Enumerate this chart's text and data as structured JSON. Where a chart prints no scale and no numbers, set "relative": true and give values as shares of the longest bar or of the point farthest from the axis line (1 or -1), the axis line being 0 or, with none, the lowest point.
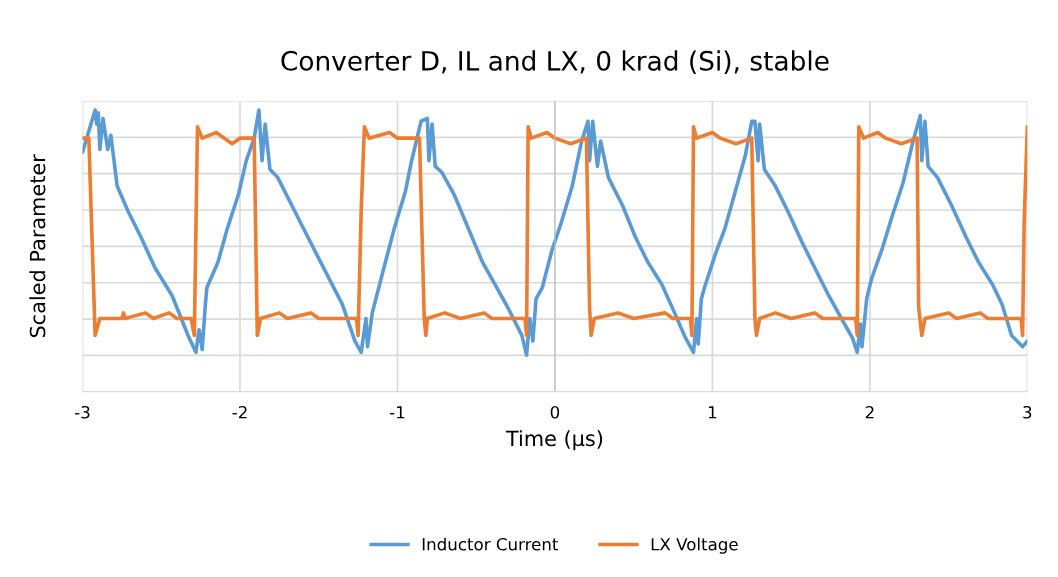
{
  "chart_data": {
    "type": "line",
    "title": "Converter D, IL and LX, 0 krad (Si), stable",
    "xlabel": "Time (µs)",
    "ylabel": "Scaled Parameter",
    "xlim": [
      -3,
      3
    ],
    "xticks": [
      -3,
      -2,
      -1,
      0,
      1,
      2,
      3
    ],
    "relative": true,
    "grid": true,
    "legend": "bottom",
    "series": [
      {
        "name": "Inductor Current",
        "color": "#5b9bd5",
        "x": [
          -3.0,
          -2.92,
          -2.91,
          -2.9,
          -2.89,
          -2.87,
          -2.84,
          -2.82,
          -2.78,
          -2.71,
          -2.63,
          -2.54,
          -2.43,
          -2.33,
          -2.28,
          -2.26,
          -2.24,
          -2.22,
          -2.21,
          -2.14,
          -2.08,
          -2.01,
          -1.96,
          -1.91,
          -1.88,
          -1.86,
          -1.84,
          -1.81,
          -1.76,
          -1.67,
          -1.57,
          -1.46,
          -1.35,
          -1.27,
          -1.23,
          -1.2,
          -1.19,
          -1.16,
          -1.1,
          -1.02,
          -0.95,
          -0.91,
          -0.85,
          -0.81,
          -0.8,
          -0.78,
          -0.76,
          -0.72,
          -0.64,
          -0.55,
          -0.46,
          -0.38,
          -0.3,
          -0.21,
          -0.18,
          -0.16,
          -0.14,
          -0.12,
          -0.08,
          -0.02,
          0.04,
          0.11,
          0.17,
          0.21,
          0.22,
          0.24,
          0.27,
          0.29,
          0.34,
          0.43,
          0.51,
          0.59,
          0.68,
          0.76,
          0.83,
          0.88,
          0.9,
          0.91,
          0.93,
          0.95,
          1.02,
          1.08,
          1.14,
          1.21,
          1.25,
          1.27,
          1.29,
          1.3,
          1.33,
          1.4,
          1.48,
          1.57,
          1.65,
          1.74,
          1.82,
          1.89,
          1.92,
          1.94,
          1.95,
          1.98,
          2.01,
          2.08,
          2.14,
          2.21,
          2.27,
          2.32,
          2.33,
          2.35,
          2.37,
          2.43,
          2.52,
          2.61,
          2.69,
          2.78,
          2.84,
          2.9,
          2.97,
          3.0
        ],
        "values": [
          0.85,
          1.0,
          0.95,
          0.99,
          0.86,
          0.97,
          0.86,
          0.91,
          0.73,
          0.64,
          0.55,
          0.44,
          0.34,
          0.2,
          0.14,
          0.22,
          0.15,
          0.31,
          0.37,
          0.46,
          0.58,
          0.7,
          0.82,
          0.9,
          1.0,
          0.82,
          0.95,
          0.79,
          0.76,
          0.66,
          0.55,
          0.43,
          0.31,
          0.18,
          0.14,
          0.26,
          0.16,
          0.28,
          0.41,
          0.58,
          0.71,
          0.82,
          0.96,
          0.97,
          0.82,
          0.95,
          0.8,
          0.78,
          0.7,
          0.58,
          0.46,
          0.38,
          0.3,
          0.2,
          0.13,
          0.26,
          0.18,
          0.33,
          0.37,
          0.5,
          0.6,
          0.73,
          0.89,
          0.96,
          0.82,
          0.96,
          0.8,
          0.89,
          0.76,
          0.66,
          0.55,
          0.46,
          0.38,
          0.28,
          0.19,
          0.14,
          0.26,
          0.17,
          0.33,
          0.37,
          0.49,
          0.58,
          0.7,
          0.84,
          0.96,
          0.96,
          0.82,
          0.95,
          0.79,
          0.73,
          0.64,
          0.53,
          0.44,
          0.34,
          0.26,
          0.19,
          0.14,
          0.24,
          0.16,
          0.33,
          0.4,
          0.51,
          0.62,
          0.74,
          0.88,
          0.98,
          0.82,
          0.96,
          0.8,
          0.76,
          0.66,
          0.55,
          0.46,
          0.38,
          0.31,
          0.2,
          0.16,
          0.18
        ]
      },
      {
        "name": "LX Voltage",
        "color": "#ed7d31",
        "x": [
          -3.0,
          -2.96,
          -2.94,
          -2.92,
          -2.91,
          -2.89,
          -2.75,
          -2.74,
          -2.73,
          -2.6,
          -2.55,
          -2.45,
          -2.4,
          -2.31,
          -2.29,
          -2.27,
          -2.24,
          -2.15,
          -2.1,
          -2.05,
          -2.0,
          -1.91,
          -1.89,
          -1.87,
          -1.75,
          -1.7,
          -1.55,
          -1.5,
          -1.26,
          -1.25,
          -1.23,
          -1.21,
          -1.18,
          -1.05,
          -1.0,
          -0.86,
          -0.83,
          -0.82,
          -0.81,
          -0.7,
          -0.6,
          -0.45,
          -0.4,
          -0.19,
          -0.18,
          -0.17,
          -0.15,
          -0.05,
          0.0,
          0.1,
          0.2,
          0.22,
          0.23,
          0.25,
          0.4,
          0.5,
          0.7,
          0.75,
          0.86,
          0.87,
          0.88,
          0.9,
          1.0,
          1.05,
          1.15,
          1.25,
          1.27,
          1.28,
          1.3,
          1.4,
          1.5,
          1.65,
          1.7,
          1.91,
          1.92,
          1.93,
          1.96,
          2.05,
          2.1,
          2.2,
          2.3,
          2.31,
          2.33,
          2.35,
          2.5,
          2.55,
          2.7,
          2.75,
          2.96,
          2.97,
          2.98,
          3.0
        ],
        "values": [
          0.9,
          0.9,
          0.55,
          0.2,
          0.22,
          0.26,
          0.26,
          0.28,
          0.26,
          0.28,
          0.26,
          0.28,
          0.26,
          0.26,
          0.2,
          0.94,
          0.9,
          0.92,
          0.9,
          0.88,
          0.9,
          0.9,
          0.2,
          0.26,
          0.28,
          0.26,
          0.28,
          0.26,
          0.26,
          0.2,
          0.65,
          0.94,
          0.9,
          0.92,
          0.9,
          0.9,
          0.26,
          0.2,
          0.26,
          0.28,
          0.26,
          0.28,
          0.26,
          0.26,
          0.2,
          0.94,
          0.9,
          0.92,
          0.9,
          0.88,
          0.9,
          0.3,
          0.2,
          0.26,
          0.28,
          0.26,
          0.28,
          0.26,
          0.26,
          0.2,
          0.94,
          0.9,
          0.92,
          0.9,
          0.88,
          0.9,
          0.26,
          0.2,
          0.26,
          0.28,
          0.26,
          0.28,
          0.26,
          0.26,
          0.2,
          0.94,
          0.9,
          0.92,
          0.9,
          0.88,
          0.9,
          0.3,
          0.2,
          0.26,
          0.28,
          0.26,
          0.28,
          0.26,
          0.26,
          0.2,
          0.6,
          0.94
        ]
      }
    ]
  }
}
